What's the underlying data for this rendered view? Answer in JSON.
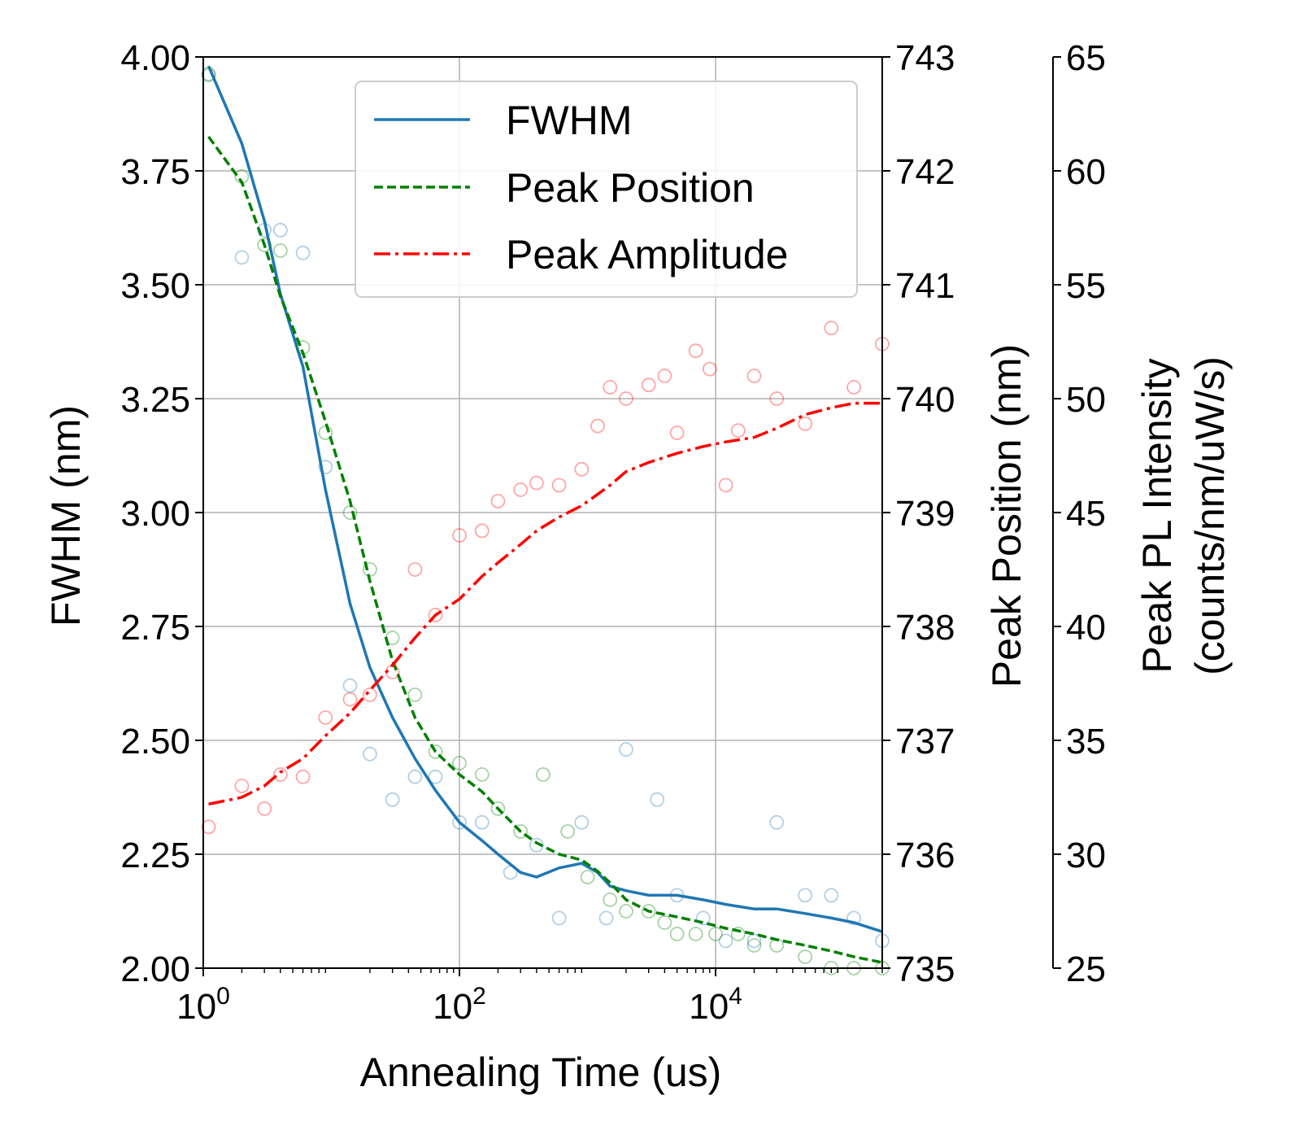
{
  "chart_data": {
    "type": "scatter",
    "xlabel": "Annealing Time (us)",
    "x_scale": "log",
    "xlim": [
      1,
      200000
    ],
    "x_ticks": [
      {
        "base": "10",
        "exp": "0",
        "value": 1
      },
      {
        "base": "10",
        "exp": "2",
        "value": 100
      },
      {
        "base": "10",
        "exp": "4",
        "value": 10000
      }
    ],
    "grid": true,
    "legend": {
      "position": "upper center",
      "entries": [
        {
          "label": "FWHM",
          "color": "#1f77b4",
          "style": "solid"
        },
        {
          "label": "Peak Position",
          "color": "#008000",
          "style": "dashed"
        },
        {
          "label": "Peak Amplitude",
          "color": "#ff0000",
          "style": "dashdot"
        }
      ]
    },
    "axes": [
      {
        "id": "fwhm",
        "label": "FWHM (nm)",
        "ylim": [
          2.0,
          4.0
        ],
        "ticks": [
          "2.00",
          "2.25",
          "2.50",
          "2.75",
          "3.00",
          "3.25",
          "3.50",
          "3.75",
          "4.00"
        ],
        "tick_values": [
          2.0,
          2.25,
          2.5,
          2.75,
          3.0,
          3.25,
          3.5,
          3.75,
          4.0
        ]
      },
      {
        "id": "pos",
        "label": "Peak Position (nm)",
        "ylim": [
          735,
          743
        ],
        "ticks": [
          "735",
          "736",
          "737",
          "738",
          "739",
          "740",
          "741",
          "742",
          "743"
        ],
        "tick_values": [
          735,
          736,
          737,
          738,
          739,
          740,
          741,
          742,
          743
        ]
      },
      {
        "id": "amp",
        "label_lines": [
          "Peak PL Intensity",
          "(counts/nm/uW/s)"
        ],
        "ylim": [
          25,
          65
        ],
        "ticks": [
          "25",
          "30",
          "35",
          "40",
          "45",
          "50",
          "55",
          "60",
          "65"
        ],
        "tick_values": [
          25,
          30,
          35,
          40,
          45,
          50,
          55,
          60,
          65
        ]
      }
    ],
    "series": [
      {
        "name": "FWHM",
        "axis": "fwhm",
        "color": "#1f77b4",
        "x": [
          1.1,
          2,
          3,
          4,
          6,
          9,
          14,
          20,
          30,
          45,
          65,
          100,
          150,
          250,
          400,
          600,
          900,
          1400,
          2000,
          3500,
          5000,
          8000,
          12000,
          20000,
          30000,
          50000,
          80000,
          120000,
          200000
        ],
        "y": [
          3.96,
          3.56,
          3.62,
          3.62,
          3.57,
          3.1,
          2.62,
          2.47,
          2.37,
          2.42,
          2.42,
          2.32,
          2.32,
          2.21,
          2.27,
          2.11,
          2.32,
          2.11,
          2.48,
          2.37,
          2.16,
          2.11,
          2.06,
          2.06,
          2.32,
          2.16,
          2.16,
          2.11,
          2.06
        ],
        "fit_x": [
          1.1,
          2,
          3,
          4,
          6,
          9,
          14,
          20,
          30,
          45,
          65,
          100,
          150,
          200,
          300,
          400,
          600,
          900,
          1200,
          1500,
          2000,
          3000,
          5000,
          8000,
          12000,
          20000,
          30000,
          50000,
          80000,
          120000,
          200000
        ],
        "fit_y": [
          3.98,
          3.81,
          3.64,
          3.48,
          3.32,
          3.05,
          2.8,
          2.66,
          2.55,
          2.46,
          2.39,
          2.32,
          2.28,
          2.25,
          2.21,
          2.2,
          2.22,
          2.23,
          2.21,
          2.18,
          2.17,
          2.16,
          2.16,
          2.15,
          2.14,
          2.13,
          2.13,
          2.12,
          2.11,
          2.1,
          2.08
        ]
      },
      {
        "name": "Peak Position",
        "axis": "pos",
        "color": "#008000",
        "x": [
          1.1,
          2,
          3,
          4,
          6,
          9,
          14,
          20,
          30,
          45,
          65,
          100,
          150,
          200,
          300,
          450,
          700,
          1000,
          1500,
          2000,
          3000,
          4000,
          5000,
          7000,
          10000,
          15000,
          20000,
          30000,
          50000,
          80000,
          120000,
          200000
        ],
        "y": [
          742.85,
          741.95,
          741.35,
          741.3,
          740.45,
          739.7,
          739.0,
          738.5,
          737.9,
          737.4,
          736.9,
          736.8,
          736.7,
          736.4,
          736.2,
          736.7,
          736.2,
          735.8,
          735.6,
          735.5,
          735.5,
          735.4,
          735.3,
          735.3,
          735.3,
          735.3,
          735.2,
          735.2,
          735.1,
          735.0,
          735.0,
          735.0
        ],
        "fit_x": [
          1.1,
          2,
          3,
          4,
          6,
          9,
          14,
          20,
          30,
          45,
          65,
          100,
          150,
          200,
          300,
          400,
          600,
          900,
          1200,
          1500,
          2000,
          3000,
          5000,
          8000,
          12000,
          20000,
          30000,
          50000,
          80000,
          120000,
          200000
        ],
        "fit_y": [
          742.3,
          741.9,
          741.35,
          740.9,
          740.4,
          739.8,
          739.1,
          738.4,
          737.7,
          737.2,
          736.9,
          736.7,
          736.55,
          736.4,
          736.2,
          736.1,
          736.0,
          735.95,
          735.85,
          735.75,
          735.6,
          735.5,
          735.45,
          735.4,
          735.35,
          735.3,
          735.25,
          735.2,
          735.15,
          735.1,
          735.05
        ]
      },
      {
        "name": "Peak Amplitude",
        "axis": "amp",
        "color": "#ff0000",
        "x": [
          1.1,
          2,
          3,
          4,
          6,
          9,
          14,
          20,
          30,
          45,
          65,
          100,
          150,
          200,
          300,
          400,
          600,
          900,
          1200,
          1500,
          2000,
          3000,
          4000,
          5000,
          7000,
          9000,
          12000,
          15000,
          20000,
          30000,
          50000,
          80000,
          120000,
          200000
        ],
        "y": [
          31.2,
          33.0,
          32.0,
          33.5,
          33.4,
          36.0,
          36.8,
          37.0,
          38.0,
          42.5,
          40.5,
          44.0,
          44.2,
          45.5,
          46.0,
          46.3,
          46.2,
          46.9,
          48.8,
          50.5,
          50.0,
          50.6,
          51.0,
          48.5,
          52.1,
          51.3,
          46.2,
          48.6,
          51.0,
          50.0,
          48.9,
          53.1,
          50.5,
          52.4
        ],
        "fit_x": [
          1.1,
          2,
          3,
          4,
          6,
          9,
          14,
          20,
          30,
          45,
          65,
          100,
          150,
          200,
          300,
          400,
          600,
          900,
          1200,
          1500,
          2000,
          3000,
          5000,
          8000,
          12000,
          20000,
          30000,
          50000,
          80000,
          120000,
          200000
        ],
        "fit_y": [
          32.2,
          32.5,
          33.0,
          33.6,
          34.2,
          35.2,
          36.2,
          37.2,
          38.3,
          39.5,
          40.5,
          41.2,
          42.2,
          42.8,
          43.6,
          44.2,
          44.8,
          45.3,
          45.8,
          46.2,
          46.8,
          47.2,
          47.6,
          47.9,
          48.1,
          48.3,
          48.7,
          49.3,
          49.6,
          49.8,
          49.8
        ]
      }
    ]
  }
}
